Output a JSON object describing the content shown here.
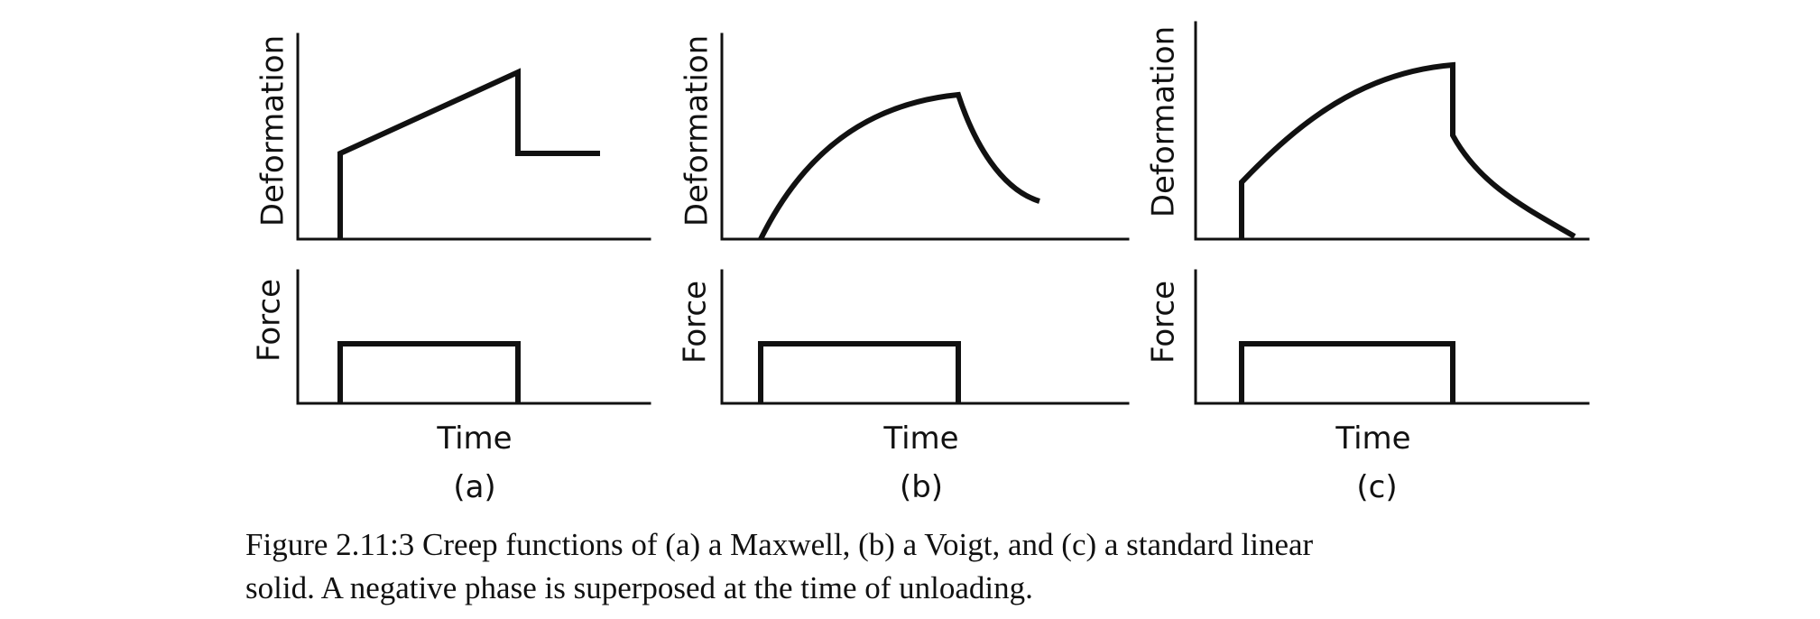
{
  "figure": {
    "panels": [
      {
        "id": "a",
        "label": "(a)",
        "deformation_label": "Deformation",
        "force_label": "Force",
        "time_label": "Time"
      },
      {
        "id": "b",
        "label": "(b)",
        "deformation_label": "Deformation",
        "force_label": "Force",
        "time_label": "Time"
      },
      {
        "id": "c",
        "label": "(c)",
        "deformation_label": "Deformation",
        "force_label": "Force",
        "time_label": "Time"
      }
    ],
    "caption_line1": "Figure 2.11:3  Creep functions of (a) a Maxwell, (b) a Voigt, and (c) a standard linear",
    "caption_line2": "solid. A negative phase is superposed at the time of unloading."
  }
}
